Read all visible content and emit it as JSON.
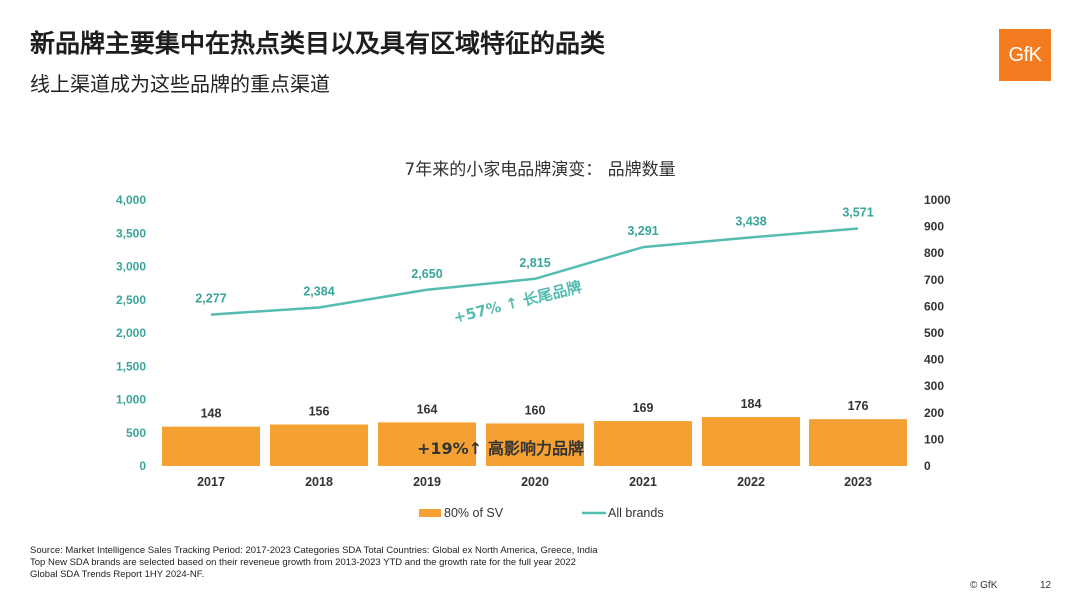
{
  "slide": {
    "title": "新品牌主要集中在热点类目以及具有区域特征的品类",
    "subtitle": "线上渠道成为这些品牌的重点渠道",
    "logo_text": "GfK",
    "logo_color": "#f47c20",
    "source_lines": [
      "Source: Market Intelligence Sales Tracking Period: 2017-2023 Categories SDA Total Countries: Global ex North America, Greece, India",
      "Top New SDA brands are selected based on their reveneue growth from 2013-2023 YTD and the growth rate for the full year 2022",
      "Global SDA Trends Report 1HY 2024-NF."
    ],
    "copyright": "© GfK",
    "page_number": "12"
  },
  "chart_data": {
    "type": "bar+line",
    "title": "7年来的小家电品牌演变： 品牌数量",
    "categories": [
      "2017",
      "2018",
      "2019",
      "2020",
      "2021",
      "2022",
      "2023"
    ],
    "series": [
      {
        "name": "80% of SV",
        "type": "bar",
        "axis": "right",
        "color": "#f5a033",
        "values": [
          148,
          156,
          164,
          160,
          169,
          184,
          176
        ],
        "labels": [
          "148",
          "156",
          "164",
          "160",
          "169",
          "184",
          "176"
        ]
      },
      {
        "name": "All brands",
        "type": "line",
        "axis": "left",
        "color": "#55bcb0",
        "values": [
          2277,
          2384,
          2650,
          2815,
          3291,
          3438,
          3571
        ],
        "labels": [
          "2,277",
          "2,384",
          "2,650",
          "2,815",
          "3,291",
          "3,438",
          "3,571"
        ]
      }
    ],
    "left_axis": {
      "range": [
        0,
        4000
      ],
      "ticks": [
        "0",
        "500",
        "1,000",
        "1,500",
        "2,000",
        "2,500",
        "3,000",
        "3,500",
        "4,000"
      ],
      "color": "#3aa59a"
    },
    "right_axis": {
      "range": [
        0,
        1000
      ],
      "ticks": [
        "0",
        "100",
        "200",
        "300",
        "400",
        "500",
        "600",
        "700",
        "800",
        "900",
        "1000"
      ]
    },
    "annotations": {
      "line_growth": "+57% ↑ 长尾品牌",
      "bar_growth_pct": "+19%↑",
      "bar_growth_text": "高影响力品牌"
    },
    "legend_position": "bottom",
    "grid": false
  }
}
